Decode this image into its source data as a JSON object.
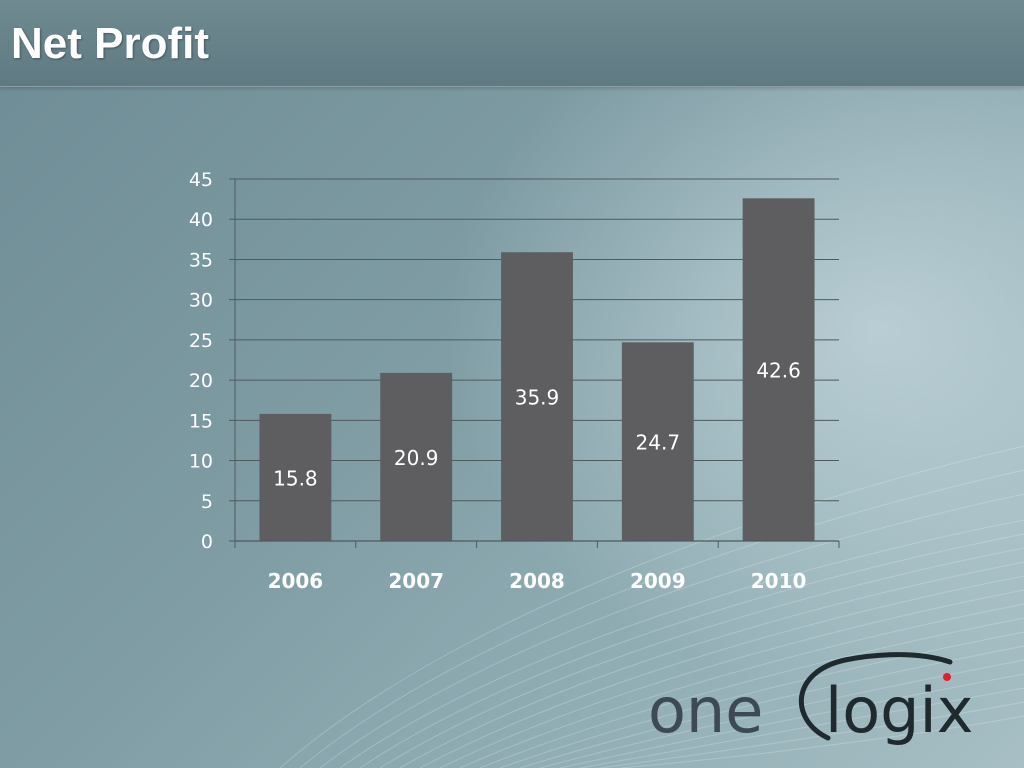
{
  "slide": {
    "title": "Net Profit"
  },
  "logo": {
    "text": "onelogix",
    "part1": "one",
    "part2": "logix",
    "accent_color": "#e0202a"
  },
  "colors": {
    "bar": "#5e5e60",
    "grid": "#4e5a5e",
    "label": "#ffffff"
  },
  "chart_data": {
    "type": "bar",
    "title": "",
    "xlabel": "",
    "ylabel": "",
    "categories": [
      "2006",
      "2007",
      "2008",
      "2009",
      "2010"
    ],
    "values": [
      15.8,
      20.9,
      35.9,
      24.7,
      42.6
    ],
    "data_labels": [
      "15.8",
      "20.9",
      "35.9",
      "24.7",
      "42.6"
    ],
    "ylim": [
      0,
      45
    ],
    "yticks": [
      0,
      5,
      10,
      15,
      20,
      25,
      30,
      35,
      40,
      45
    ],
    "ytick_labels": [
      "0",
      "5",
      "10",
      "15",
      "20",
      "25",
      "30",
      "35",
      "40",
      "45"
    ],
    "grid": true,
    "legend": "none"
  }
}
